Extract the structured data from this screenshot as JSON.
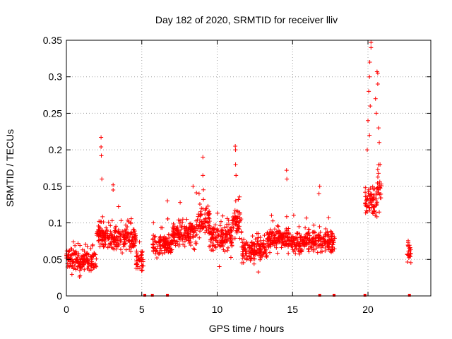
{
  "chart_data": {
    "type": "scatter",
    "title": "Day 182 of 2020, SRMTID for receiver lliv",
    "xlabel": "GPS time / hours",
    "ylabel": "SRMTID / TECUs",
    "xlim": [
      0,
      24.167
    ],
    "ylim": [
      0,
      0.35
    ],
    "grid": true,
    "legend": "none",
    "marker": "+",
    "color": "#ff0000",
    "x_tick_labels": [
      "0",
      "5",
      "10",
      "15",
      "20"
    ],
    "y_tick_labels": [
      "0",
      "0.05",
      "0.1",
      "0.15",
      "0.2",
      "0.25",
      "0.3",
      "0.35"
    ],
    "clusters": [
      {
        "x": [
          0.0,
          0.7
        ],
        "y": [
          0.03,
          0.07
        ]
      },
      {
        "x": [
          0.7,
          2.0
        ],
        "y": [
          0.03,
          0.065
        ]
      },
      {
        "x": [
          2.0,
          2.4
        ],
        "y": [
          0.06,
          0.11
        ]
      },
      {
        "x": [
          2.4,
          3.3
        ],
        "y": [
          0.06,
          0.1
        ]
      },
      {
        "x": [
          3.3,
          4.6
        ],
        "y": [
          0.055,
          0.105
        ]
      },
      {
        "x": [
          4.6,
          5.1
        ],
        "y": [
          0.03,
          0.07
        ]
      },
      {
        "x": [
          5.7,
          7.0
        ],
        "y": [
          0.05,
          0.09
        ]
      },
      {
        "x": [
          7.0,
          8.6
        ],
        "y": [
          0.06,
          0.11
        ]
      },
      {
        "x": [
          8.6,
          9.5
        ],
        "y": [
          0.07,
          0.13
        ]
      },
      {
        "x": [
          9.5,
          11.0
        ],
        "y": [
          0.05,
          0.11
        ]
      },
      {
        "x": [
          11.0,
          11.6
        ],
        "y": [
          0.07,
          0.13
        ]
      },
      {
        "x": [
          11.6,
          13.3
        ],
        "y": [
          0.04,
          0.085
        ]
      },
      {
        "x": [
          13.3,
          14.9
        ],
        "y": [
          0.06,
          0.1
        ]
      },
      {
        "x": [
          14.9,
          16.6
        ],
        "y": [
          0.055,
          0.095
        ]
      },
      {
        "x": [
          16.6,
          17.8
        ],
        "y": [
          0.05,
          0.1
        ]
      },
      {
        "x": [
          19.8,
          20.2
        ],
        "y": [
          0.1,
          0.16
        ]
      },
      {
        "x": [
          20.2,
          20.6
        ],
        "y": [
          0.1,
          0.16
        ]
      },
      {
        "x": [
          20.6,
          20.9
        ],
        "y": [
          0.11,
          0.2
        ]
      },
      {
        "x": [
          22.6,
          22.85
        ],
        "y": [
          0.04,
          0.08
        ]
      }
    ],
    "peaks": [
      {
        "x": 2.3,
        "y": 0.217
      },
      {
        "x": 2.3,
        "y": 0.204
      },
      {
        "x": 2.32,
        "y": 0.192
      },
      {
        "x": 2.35,
        "y": 0.16
      },
      {
        "x": 3.1,
        "y": 0.152
      },
      {
        "x": 3.1,
        "y": 0.145
      },
      {
        "x": 6.7,
        "y": 0.13
      },
      {
        "x": 8.4,
        "y": 0.15
      },
      {
        "x": 8.8,
        "y": 0.14
      },
      {
        "x": 9.05,
        "y": 0.19
      },
      {
        "x": 9.05,
        "y": 0.165
      },
      {
        "x": 11.2,
        "y": 0.205
      },
      {
        "x": 11.22,
        "y": 0.2
      },
      {
        "x": 11.22,
        "y": 0.18
      },
      {
        "x": 11.25,
        "y": 0.165
      },
      {
        "x": 14.6,
        "y": 0.172
      },
      {
        "x": 14.62,
        "y": 0.16
      },
      {
        "x": 16.8,
        "y": 0.15
      },
      {
        "x": 16.75,
        "y": 0.14
      },
      {
        "x": 19.95,
        "y": 0.2
      },
      {
        "x": 20.0,
        "y": 0.24
      },
      {
        "x": 20.05,
        "y": 0.28
      },
      {
        "x": 20.1,
        "y": 0.3
      },
      {
        "x": 20.12,
        "y": 0.32
      },
      {
        "x": 20.2,
        "y": 0.347
      },
      {
        "x": 20.2,
        "y": 0.34
      },
      {
        "x": 20.15,
        "y": 0.26
      },
      {
        "x": 20.1,
        "y": 0.22
      },
      {
        "x": 20.5,
        "y": 0.27
      },
      {
        "x": 20.55,
        "y": 0.25
      },
      {
        "x": 20.6,
        "y": 0.307
      },
      {
        "x": 20.65,
        "y": 0.305
      },
      {
        "x": 20.65,
        "y": 0.29
      },
      {
        "x": 20.7,
        "y": 0.23
      },
      {
        "x": 20.75,
        "y": 0.21
      },
      {
        "x": 20.8,
        "y": 0.18
      }
    ],
    "zero_markers": [
      5.2,
      5.7,
      6.7,
      16.8,
      17.75,
      19.8,
      22.75
    ]
  }
}
